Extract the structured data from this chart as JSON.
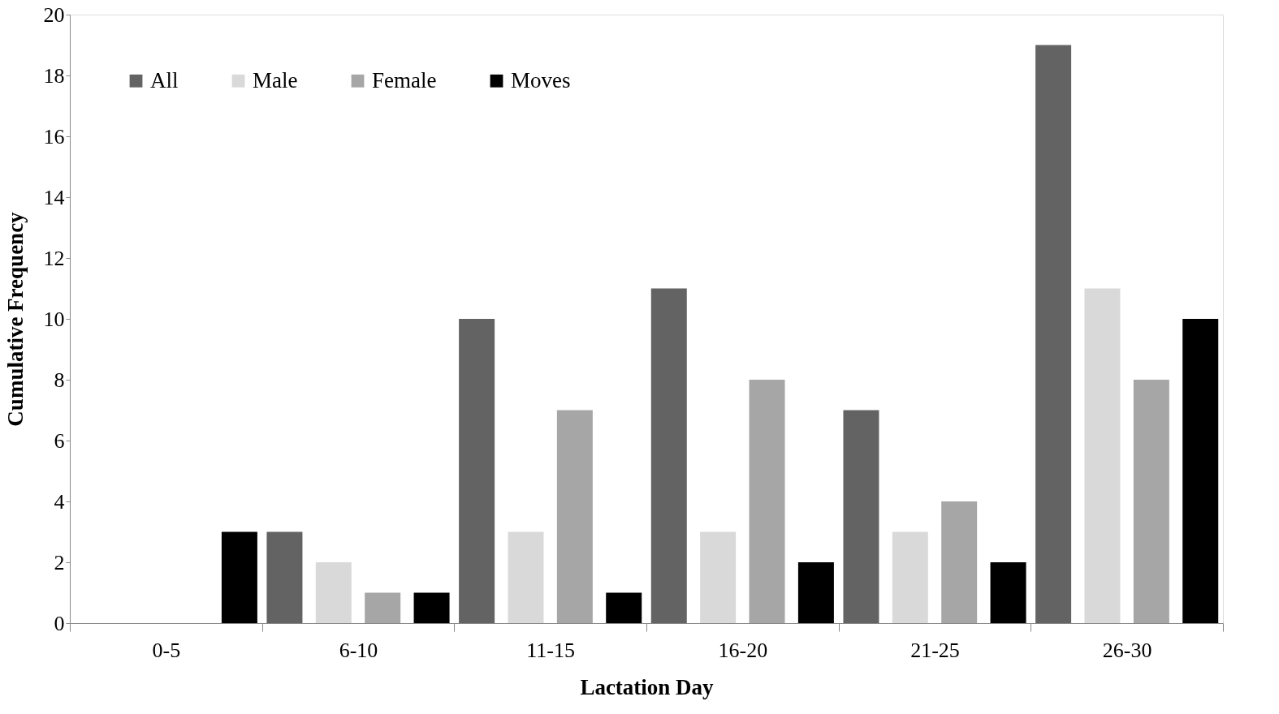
{
  "chart_data": {
    "type": "bar",
    "xlabel": "Lactation Day",
    "ylabel": "Cumulative Frequency",
    "categories": [
      "0-5",
      "6-10",
      "11-15",
      "16-20",
      "21-25",
      "26-30"
    ],
    "series": [
      {
        "name": "All",
        "color": "#636363",
        "values": [
          0,
          3,
          10,
          11,
          7,
          19
        ]
      },
      {
        "name": "Male",
        "color": "#d9d9d9",
        "values": [
          0,
          2,
          3,
          3,
          3,
          11
        ]
      },
      {
        "name": "Female",
        "color": "#a6a6a6",
        "values": [
          0,
          1,
          7,
          8,
          4,
          8
        ]
      },
      {
        "name": "Moves",
        "color": "#000000",
        "values": [
          3,
          1,
          1,
          2,
          2,
          10
        ]
      }
    ],
    "ylim": [
      0,
      20
    ],
    "yticks": [
      0,
      2,
      4,
      6,
      8,
      10,
      12,
      14,
      16,
      18,
      20
    ],
    "grid": false,
    "legend": "top left"
  }
}
